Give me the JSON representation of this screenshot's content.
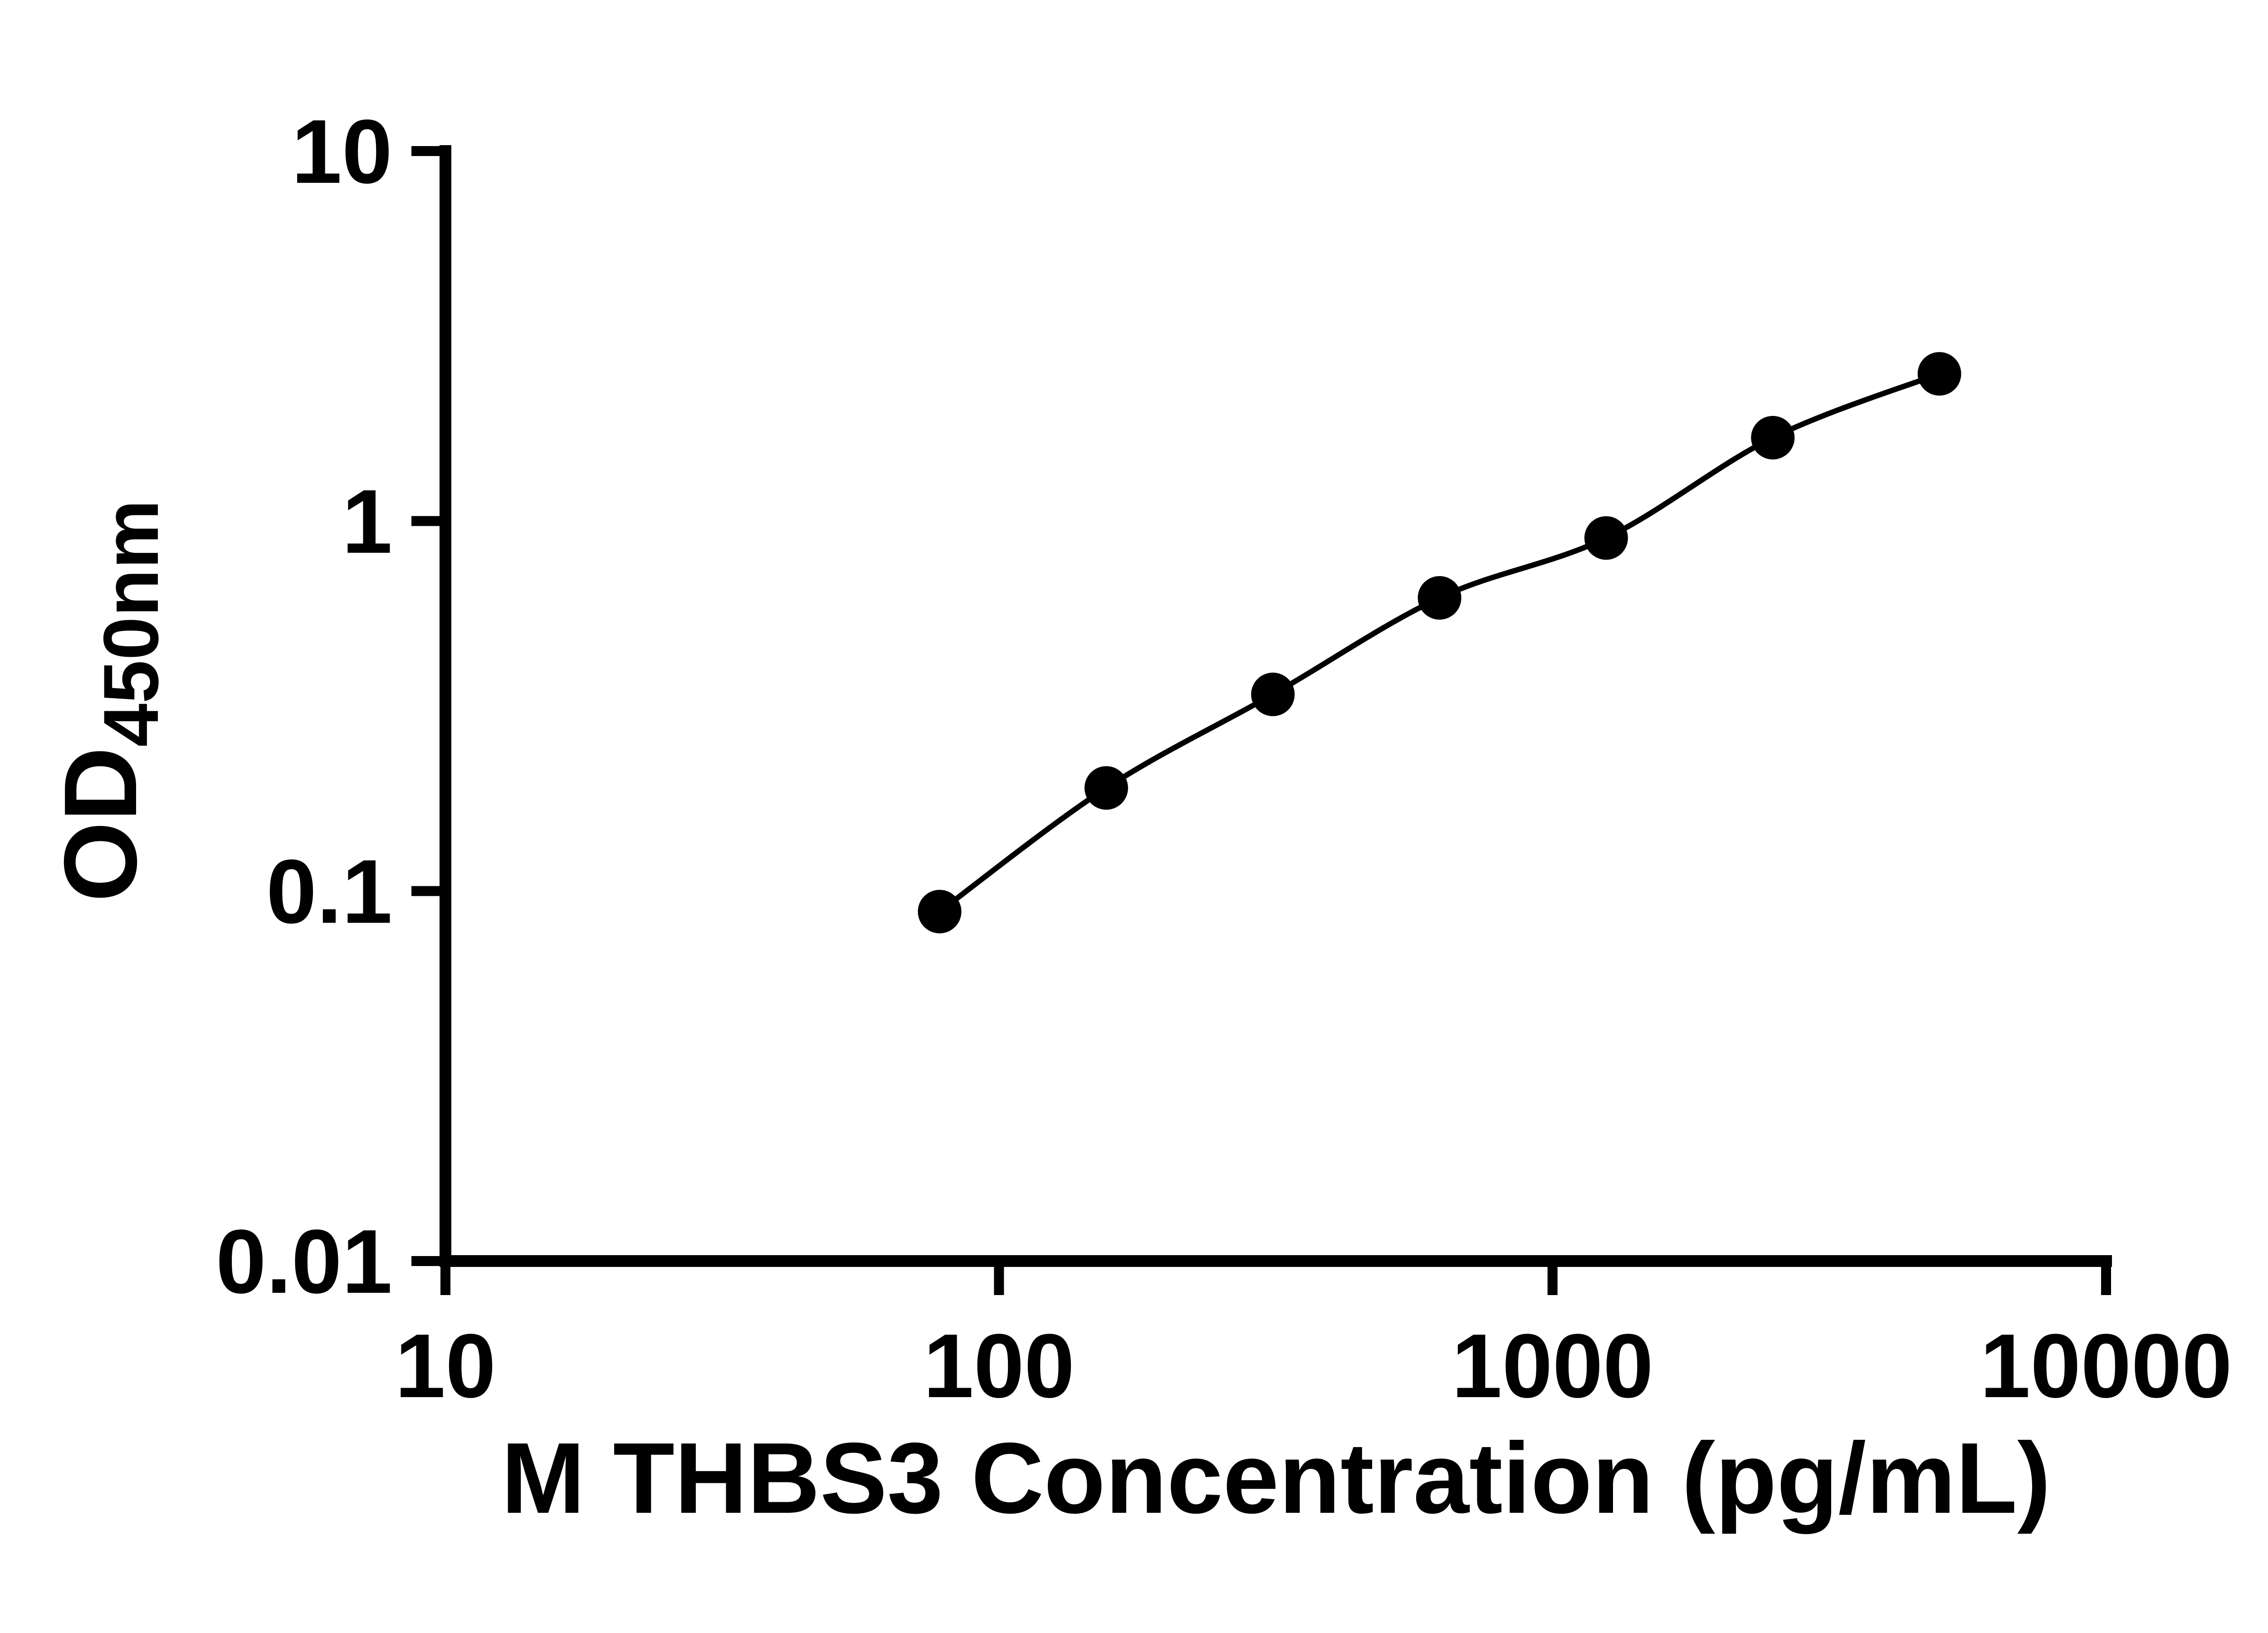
{
  "chart_data": {
    "type": "scatter",
    "title": "",
    "xlabel": "M THBS3 Concentration (pg/mL)",
    "ylabel": "OD450nm",
    "ylabel_main": "OD",
    "ylabel_sub": "450nm",
    "xscale": "log",
    "yscale": "log",
    "xlim": [
      10,
      10000
    ],
    "ylim": [
      0.01,
      10
    ],
    "grid": false,
    "legend": "none",
    "x": [
      78.125,
      156.25,
      312.5,
      625,
      1250,
      2500,
      5000
    ],
    "y": [
      0.088,
      0.19,
      0.34,
      0.62,
      0.9,
      1.68,
      2.5
    ],
    "x_ticks": [
      10,
      100,
      1000,
      10000
    ],
    "y_ticks": [
      0.01,
      0.1,
      1,
      10
    ],
    "x_tick_labels": [
      "10",
      "100",
      "1000",
      "10000"
    ],
    "y_tick_labels": [
      "0.01",
      "0.1",
      "1",
      "10"
    ],
    "marker_color": "#000000",
    "line_color": "#000000",
    "axis_color": "#000000",
    "background_color": "#ffffff"
  }
}
